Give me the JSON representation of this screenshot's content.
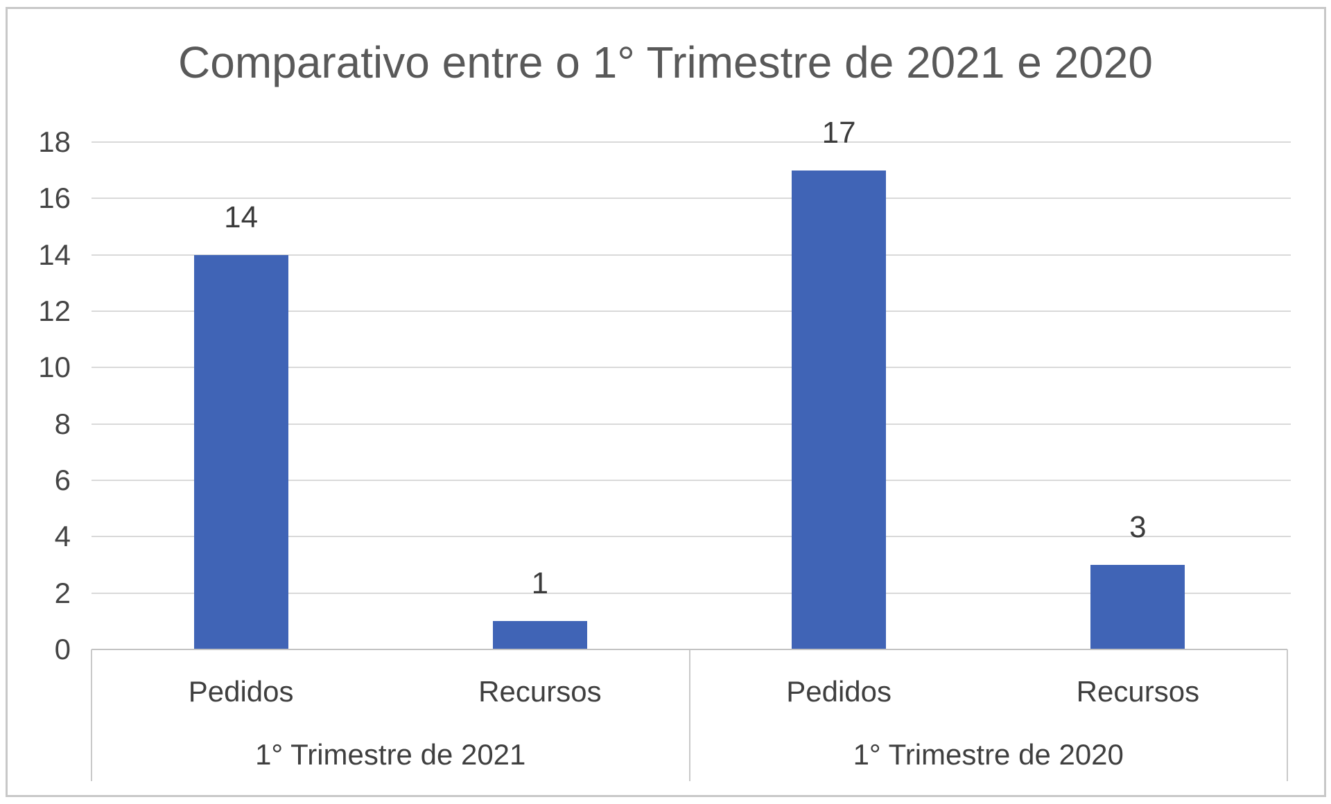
{
  "window": {
    "background_color": "#ffffff",
    "frame_border_color": "#c8c8c8"
  },
  "chart_data": {
    "type": "bar",
    "title": "Comparativo entre o 1° Trimestre de 2021 e 2020",
    "title_color": "#595959",
    "bar_color": "#4064b6",
    "label_color": "#3f3f3f",
    "tick_color": "#444444",
    "gridline_color": "#d9d9d9",
    "axis_line_color": "#c2c2c2",
    "grid": true,
    "legend": "none",
    "ylim": [
      0,
      18
    ],
    "y_tick_step": 2,
    "y_tick_labels": [
      "0",
      "2",
      "4",
      "6",
      "8",
      "10",
      "12",
      "14",
      "16",
      "18"
    ],
    "data_labels_shown": true,
    "groups": [
      {
        "label": "1° Trimestre de 2021",
        "categories": [
          "Pedidos",
          "Recursos"
        ],
        "values": [
          14,
          1
        ]
      },
      {
        "label": "1° Trimestre de 2020",
        "categories": [
          "Pedidos",
          "Recursos"
        ],
        "values": [
          17,
          3
        ]
      }
    ]
  }
}
